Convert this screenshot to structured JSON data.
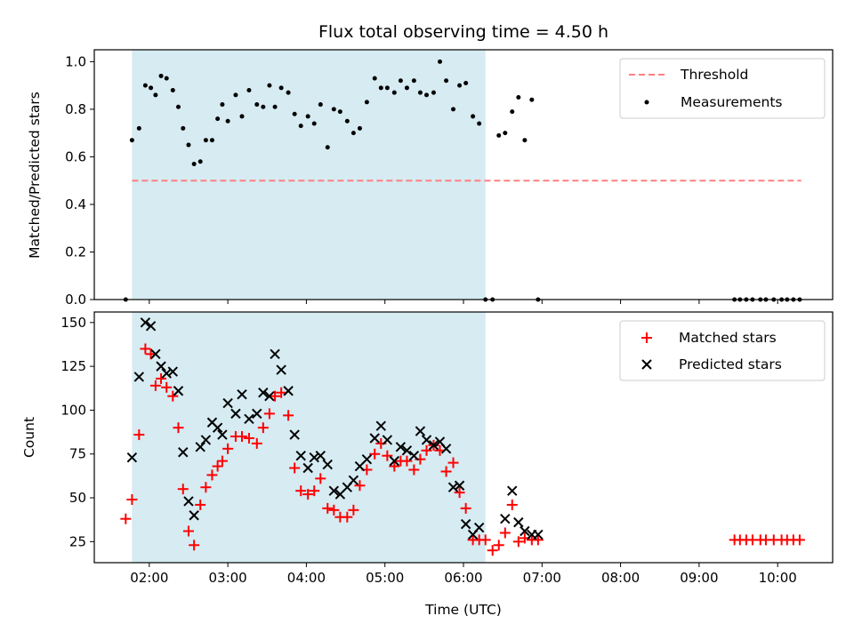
{
  "chart_data": [
    {
      "type": "scatter",
      "title": "Flux total observing time = 4.50 h",
      "xlabel": "",
      "ylabel": "Matched/Predicted stars",
      "xlim_hours": [
        1.3,
        10.7
      ],
      "ylim": [
        0,
        1.05
      ],
      "yticks": [
        0.0,
        0.2,
        0.4,
        0.6,
        0.8,
        1.0
      ],
      "ytick_labels": [
        "0.0",
        "0.2",
        "0.4",
        "0.6",
        "0.8",
        "1.0"
      ],
      "shaded_interval_hours": [
        1.78,
        6.28
      ],
      "shade_color": "#add8e6",
      "threshold": {
        "name": "Threshold",
        "value": 0.5,
        "x_range_hours": [
          1.78,
          10.3
        ],
        "color": "#ff8080"
      },
      "series": [
        {
          "name": "Measurements",
          "color": "#000000",
          "x": [
            1.7,
            1.78,
            1.87,
            1.95,
            2.02,
            2.08,
            2.15,
            2.22,
            2.3,
            2.37,
            2.43,
            2.5,
            2.57,
            2.65,
            2.72,
            2.8,
            2.87,
            2.93,
            3.0,
            3.1,
            3.18,
            3.27,
            3.37,
            3.45,
            3.53,
            3.6,
            3.68,
            3.77,
            3.85,
            3.93,
            4.02,
            4.1,
            4.18,
            4.27,
            4.35,
            4.43,
            4.52,
            4.6,
            4.68,
            4.77,
            4.87,
            4.95,
            5.03,
            5.12,
            5.2,
            5.28,
            5.37,
            5.45,
            5.53,
            5.62,
            5.7,
            5.78,
            5.87,
            5.95,
            6.03,
            6.12,
            6.2,
            6.28,
            6.37,
            6.45,
            6.53,
            6.62,
            6.7,
            6.78,
            6.87,
            6.95,
            9.45,
            9.52,
            9.6,
            9.68,
            9.78,
            9.85,
            9.95,
            10.05,
            10.12,
            10.2,
            10.28
          ],
          "y": [
            0.0,
            0.67,
            0.72,
            0.9,
            0.89,
            0.86,
            0.94,
            0.93,
            0.88,
            0.81,
            0.72,
            0.65,
            0.57,
            0.58,
            0.67,
            0.67,
            0.76,
            0.82,
            0.75,
            0.86,
            0.77,
            0.88,
            0.82,
            0.81,
            0.9,
            0.81,
            0.89,
            0.87,
            0.78,
            0.73,
            0.77,
            0.74,
            0.82,
            0.64,
            0.8,
            0.79,
            0.75,
            0.7,
            0.72,
            0.83,
            0.93,
            0.89,
            0.89,
            0.87,
            0.92,
            0.89,
            0.92,
            0.87,
            0.86,
            0.87,
            1.0,
            0.92,
            0.8,
            0.9,
            0.91,
            0.77,
            0.74,
            0.0,
            0.0,
            0.69,
            0.7,
            0.79,
            0.85,
            0.67,
            0.84,
            0.0,
            0.0,
            0.0,
            0.0,
            0.0,
            0.0,
            0.0,
            0.0,
            0.0,
            0.0,
            0.0,
            0.0
          ]
        }
      ],
      "legend": {
        "placement": "upper right",
        "entries": [
          "Threshold",
          "Measurements"
        ]
      }
    },
    {
      "type": "scatter",
      "title": "",
      "xlabel": "Time (UTC)",
      "ylabel": "Count",
      "xlim_hours": [
        1.3,
        10.7
      ],
      "ylim": [
        13,
        156
      ],
      "yticks": [
        25,
        50,
        75,
        100,
        125,
        150
      ],
      "ytick_labels": [
        "25",
        "50",
        "75",
        "100",
        "125",
        "150"
      ],
      "xticks_hours": [
        2,
        3,
        4,
        5,
        6,
        7,
        8,
        9,
        10
      ],
      "xtick_labels": [
        "02:00",
        "03:00",
        "04:00",
        "05:00",
        "06:00",
        "07:00",
        "08:00",
        "09:00",
        "10:00"
      ],
      "shaded_interval_hours": [
        1.78,
        6.28
      ],
      "shade_color": "#add8e6",
      "series": [
        {
          "name": "Matched stars",
          "marker": "+",
          "color": "#ff0000",
          "x": [
            1.7,
            1.78,
            1.87,
            1.95,
            2.02,
            2.08,
            2.15,
            2.22,
            2.3,
            2.37,
            2.43,
            2.5,
            2.57,
            2.65,
            2.72,
            2.8,
            2.87,
            2.93,
            3.0,
            3.1,
            3.18,
            3.27,
            3.37,
            3.45,
            3.53,
            3.6,
            3.68,
            3.77,
            3.85,
            3.93,
            4.02,
            4.1,
            4.18,
            4.27,
            4.35,
            4.43,
            4.52,
            4.6,
            4.68,
            4.77,
            4.87,
            4.95,
            5.03,
            5.12,
            5.2,
            5.28,
            5.37,
            5.45,
            5.53,
            5.62,
            5.7,
            5.78,
            5.87,
            5.95,
            6.03,
            6.12,
            6.2,
            6.28,
            6.37,
            6.45,
            6.53,
            6.62,
            6.7,
            6.78,
            6.87,
            6.95,
            9.45,
            9.52,
            9.6,
            9.68,
            9.78,
            9.85,
            9.95,
            10.05,
            10.12,
            10.2,
            10.28
          ],
          "y": [
            38,
            49,
            86,
            135,
            132,
            114,
            118,
            113,
            108,
            90,
            55,
            31,
            23,
            46,
            56,
            63,
            68,
            71,
            78,
            85,
            85,
            84,
            81,
            90,
            98,
            108,
            110,
            97,
            67,
            54,
            52,
            54,
            61,
            44,
            43,
            39,
            39,
            43,
            57,
            66,
            75,
            81,
            74,
            68,
            71,
            71,
            66,
            72,
            77,
            80,
            77,
            65,
            70,
            53,
            44,
            26,
            26,
            26,
            20,
            23,
            30,
            46,
            25,
            27,
            26,
            26,
            26,
            26,
            26,
            26,
            26,
            26,
            26,
            26,
            26,
            26,
            26
          ]
        },
        {
          "name": "Predicted stars",
          "marker": "x",
          "color": "#000000",
          "x": [
            1.78,
            1.87,
            1.95,
            2.02,
            2.08,
            2.15,
            2.22,
            2.3,
            2.37,
            2.43,
            2.5,
            2.57,
            2.65,
            2.72,
            2.8,
            2.87,
            2.93,
            3.0,
            3.1,
            3.18,
            3.27,
            3.37,
            3.45,
            3.53,
            3.6,
            3.68,
            3.77,
            3.85,
            3.93,
            4.02,
            4.1,
            4.18,
            4.27,
            4.35,
            4.43,
            4.52,
            4.6,
            4.68,
            4.77,
            4.87,
            4.95,
            5.03,
            5.12,
            5.2,
            5.28,
            5.37,
            5.45,
            5.53,
            5.62,
            5.7,
            5.78,
            5.87,
            5.95,
            6.03,
            6.12,
            6.2,
            6.53,
            6.62,
            6.7,
            6.78,
            6.87,
            6.95
          ],
          "y": [
            73,
            119,
            150,
            148,
            132,
            125,
            121,
            122,
            111,
            76,
            48,
            40,
            79,
            83,
            93,
            90,
            86,
            104,
            98,
            109,
            95,
            98,
            110,
            108,
            132,
            123,
            111,
            86,
            74,
            67,
            73,
            74,
            69,
            54,
            52,
            56,
            60,
            68,
            72,
            84,
            91,
            83,
            71,
            79,
            77,
            74,
            88,
            83,
            80,
            82,
            78,
            56,
            57,
            35,
            29,
            33,
            38,
            54,
            36,
            31,
            29,
            29
          ]
        }
      ],
      "legend": {
        "placement": "upper right",
        "entries": [
          "Matched stars",
          "Predicted stars"
        ]
      }
    }
  ]
}
